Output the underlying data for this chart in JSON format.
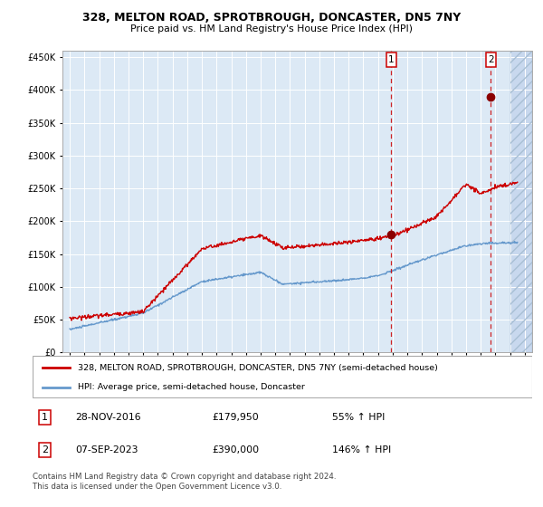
{
  "title": "328, MELTON ROAD, SPROTBROUGH, DONCASTER, DN5 7NY",
  "subtitle": "Price paid vs. HM Land Registry's House Price Index (HPI)",
  "legend_line1": "328, MELTON ROAD, SPROTBROUGH, DONCASTER, DN5 7NY (semi-detached house)",
  "legend_line2": "HPI: Average price, semi-detached house, Doncaster",
  "sale1_date": "28-NOV-2016",
  "sale1_price": "£179,950",
  "sale1_hpi": "55% ↑ HPI",
  "sale2_date": "07-SEP-2023",
  "sale2_price": "£390,000",
  "sale2_hpi": "146% ↑ HPI",
  "footer": "Contains HM Land Registry data © Crown copyright and database right 2024.\nThis data is licensed under the Open Government Licence v3.0.",
  "hpi_color": "#6699cc",
  "property_color": "#cc0000",
  "sale1_year": 2016.91,
  "sale2_year": 2023.69,
  "ylim": [
    0,
    460000
  ],
  "xlim_start": 1994.5,
  "xlim_end": 2026.5,
  "background_plot": "#dce9f5",
  "background_fig": "#ffffff",
  "future_x": 2025.0
}
